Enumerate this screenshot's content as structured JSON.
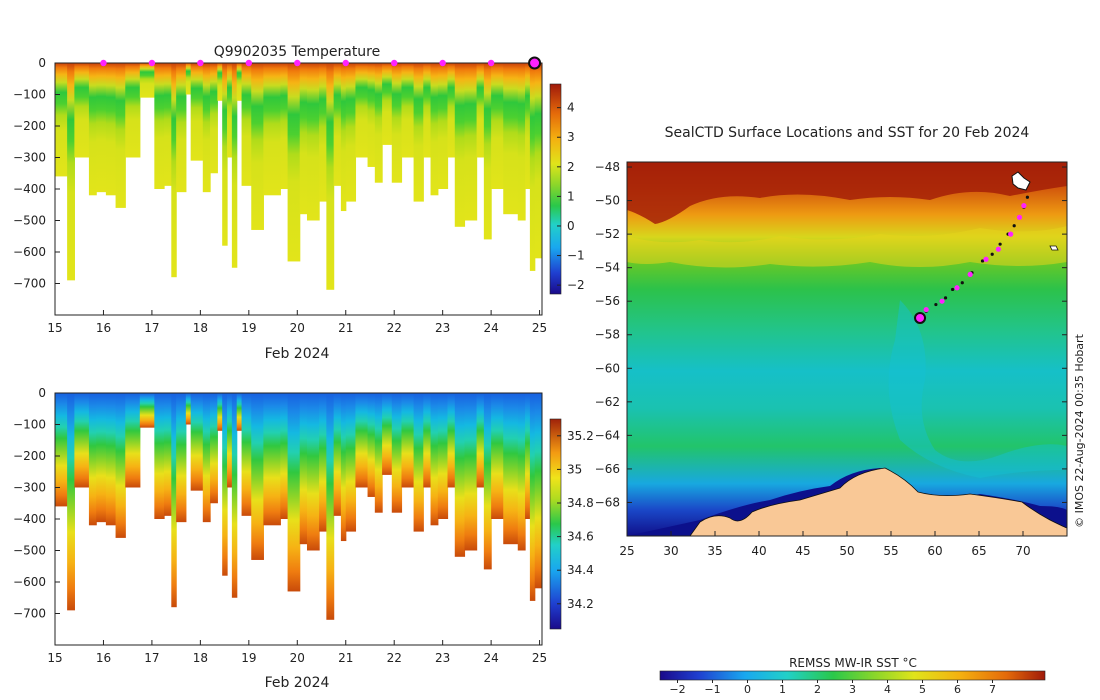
{
  "chart_data": [
    {
      "type": "heatmap",
      "id": "temperature_section",
      "title": "Q9902035  Temperature",
      "xlabel": "Feb 2024",
      "ylabel": "",
      "x_ticks": [
        15,
        16,
        17,
        18,
        19,
        20,
        21,
        22,
        23,
        24,
        25
      ],
      "y_ticks": [
        0,
        -100,
        -200,
        -300,
        -400,
        -500,
        -600,
        -700
      ],
      "xlim": [
        15,
        25.05
      ],
      "ylim": [
        -800,
        0
      ],
      "colorbar": {
        "min": -2.3,
        "max": 4.8,
        "ticks": [
          4,
          3,
          2,
          1,
          0,
          -1,
          -2
        ]
      },
      "profile_markers_x": [
        16,
        17,
        18,
        19,
        20,
        21,
        22,
        23,
        24
      ],
      "last_profile_x": 25,
      "profiles": [
        {
          "x0": 15.0,
          "x1": 15.25,
          "depth": 360
        },
        {
          "x0": 15.25,
          "x1": 15.4,
          "depth": 690
        },
        {
          "x0": 15.4,
          "x1": 15.7,
          "depth": 300
        },
        {
          "x0": 15.7,
          "x1": 15.85,
          "depth": 420
        },
        {
          "x0": 15.85,
          "x1": 16.05,
          "depth": 410
        },
        {
          "x0": 16.05,
          "x1": 16.25,
          "depth": 420
        },
        {
          "x0": 16.25,
          "x1": 16.45,
          "depth": 460
        },
        {
          "x0": 16.45,
          "x1": 16.6,
          "depth": 300
        },
        {
          "x0": 16.6,
          "x1": 16.75,
          "depth": 300
        },
        {
          "x0": 16.75,
          "x1": 17.05,
          "depth": 110
        },
        {
          "x0": 17.05,
          "x1": 17.25,
          "depth": 400
        },
        {
          "x0": 17.25,
          "x1": 17.4,
          "depth": 390
        },
        {
          "x0": 17.4,
          "x1": 17.5,
          "depth": 680
        },
        {
          "x0": 17.5,
          "x1": 17.7,
          "depth": 410
        },
        {
          "x0": 17.7,
          "x1": 17.8,
          "depth": 100
        },
        {
          "x0": 17.8,
          "x1": 18.05,
          "depth": 310
        },
        {
          "x0": 18.05,
          "x1": 18.2,
          "depth": 410
        },
        {
          "x0": 18.2,
          "x1": 18.35,
          "depth": 350
        },
        {
          "x0": 18.35,
          "x1": 18.45,
          "depth": 120
        },
        {
          "x0": 18.45,
          "x1": 18.55,
          "depth": 580
        },
        {
          "x0": 18.55,
          "x1": 18.65,
          "depth": 300
        },
        {
          "x0": 18.65,
          "x1": 18.75,
          "depth": 650
        },
        {
          "x0": 18.75,
          "x1": 18.85,
          "depth": 120
        },
        {
          "x0": 18.85,
          "x1": 19.05,
          "depth": 390
        },
        {
          "x0": 19.05,
          "x1": 19.3,
          "depth": 530
        },
        {
          "x0": 19.3,
          "x1": 19.65,
          "depth": 420
        },
        {
          "x0": 19.65,
          "x1": 19.8,
          "depth": 400
        },
        {
          "x0": 19.8,
          "x1": 20.05,
          "depth": 630
        },
        {
          "x0": 20.05,
          "x1": 20.2,
          "depth": 480
        },
        {
          "x0": 20.2,
          "x1": 20.45,
          "depth": 500
        },
        {
          "x0": 20.45,
          "x1": 20.6,
          "depth": 440
        },
        {
          "x0": 20.6,
          "x1": 20.75,
          "depth": 720
        },
        {
          "x0": 20.75,
          "x1": 20.9,
          "depth": 390
        },
        {
          "x0": 20.9,
          "x1": 21.0,
          "depth": 470
        },
        {
          "x0": 21.0,
          "x1": 21.2,
          "depth": 440
        },
        {
          "x0": 21.2,
          "x1": 21.45,
          "depth": 300
        },
        {
          "x0": 21.45,
          "x1": 21.6,
          "depth": 330
        },
        {
          "x0": 21.6,
          "x1": 21.75,
          "depth": 380
        },
        {
          "x0": 21.75,
          "x1": 21.95,
          "depth": 260
        },
        {
          "x0": 21.95,
          "x1": 22.15,
          "depth": 380
        },
        {
          "x0": 22.15,
          "x1": 22.4,
          "depth": 300
        },
        {
          "x0": 22.4,
          "x1": 22.6,
          "depth": 440
        },
        {
          "x0": 22.6,
          "x1": 22.75,
          "depth": 300
        },
        {
          "x0": 22.75,
          "x1": 22.9,
          "depth": 420
        },
        {
          "x0": 22.9,
          "x1": 23.1,
          "depth": 400
        },
        {
          "x0": 23.1,
          "x1": 23.25,
          "depth": 300
        },
        {
          "x0": 23.25,
          "x1": 23.45,
          "depth": 520
        },
        {
          "x0": 23.45,
          "x1": 23.7,
          "depth": 500
        },
        {
          "x0": 23.7,
          "x1": 23.85,
          "depth": 300
        },
        {
          "x0": 23.85,
          "x1": 24.0,
          "depth": 560
        },
        {
          "x0": 24.0,
          "x1": 24.25,
          "depth": 400
        },
        {
          "x0": 24.25,
          "x1": 24.55,
          "depth": 480
        },
        {
          "x0": 24.55,
          "x1": 24.7,
          "depth": 500
        },
        {
          "x0": 24.7,
          "x1": 24.8,
          "depth": 400
        },
        {
          "x0": 24.8,
          "x1": 24.9,
          "depth": 660
        },
        {
          "x0": 24.9,
          "x1": 25.05,
          "depth": 620
        }
      ]
    },
    {
      "type": "heatmap",
      "id": "salinity_section",
      "title": "",
      "xlabel": "Feb 2024",
      "ylabel": "",
      "x_ticks": [
        15,
        16,
        17,
        18,
        19,
        20,
        21,
        22,
        23,
        24,
        25
      ],
      "y_ticks": [
        0,
        -100,
        -200,
        -300,
        -400,
        -500,
        -600,
        -700
      ],
      "xlim": [
        15,
        25.05
      ],
      "ylim": [
        -800,
        0
      ],
      "colorbar": {
        "min": 34.05,
        "max": 35.3,
        "ticks": [
          35.2,
          35,
          34.8,
          34.6,
          34.4,
          34.2
        ],
        "tick_labels": [
          "35.2",
          "35",
          "34.8",
          "34.6",
          "34.4",
          "34.2"
        ]
      }
    },
    {
      "type": "heatmap",
      "id": "sst_map",
      "title": "SealCTD Surface Locations and SST for 20 Feb 2024",
      "xlabel": "",
      "ylabel": "",
      "x_ticks": [
        25,
        30,
        35,
        40,
        45,
        50,
        55,
        60,
        65,
        70
      ],
      "y_ticks": [
        -48,
        -50,
        -52,
        -54,
        -56,
        -58,
        -60,
        -62,
        -64,
        -66,
        -68
      ],
      "xlim": [
        25,
        75
      ],
      "ylim": [
        -70,
        -47.7
      ],
      "track": {
        "lon": [
          58.3,
          59.0,
          60.1,
          61.2,
          62.0,
          63.1,
          64.2,
          65.4,
          66.5,
          67.4,
          68.3,
          69.0,
          69.6,
          70.1,
          70.5,
          70.3
        ],
        "lat": [
          -57.0,
          -56.6,
          -56.2,
          -55.8,
          -55.3,
          -54.9,
          -54.3,
          -53.6,
          -53.2,
          -52.6,
          -52.0,
          -51.5,
          -51.0,
          -50.4,
          -49.8,
          -49.2
        ]
      },
      "markers": {
        "lon": [
          59.0,
          60.8,
          62.5,
          64.0,
          65.8,
          67.2,
          68.6,
          69.6,
          70.1
        ],
        "lat": [
          -56.5,
          -56.0,
          -55.2,
          -54.4,
          -53.5,
          -52.9,
          -52.0,
          -51.0,
          -50.3
        ]
      },
      "last_position": {
        "lon": 58.3,
        "lat": -57.0
      },
      "colorbar": {
        "title": "REMSS MW-IR SST °C",
        "min": -2.5,
        "max": 8.5,
        "ticks": [
          -2,
          -1,
          0,
          1,
          2,
          3,
          4,
          5,
          6,
          7
        ]
      },
      "credit": "© IMOS 22-Aug-2024 00:35 Hobart"
    }
  ]
}
